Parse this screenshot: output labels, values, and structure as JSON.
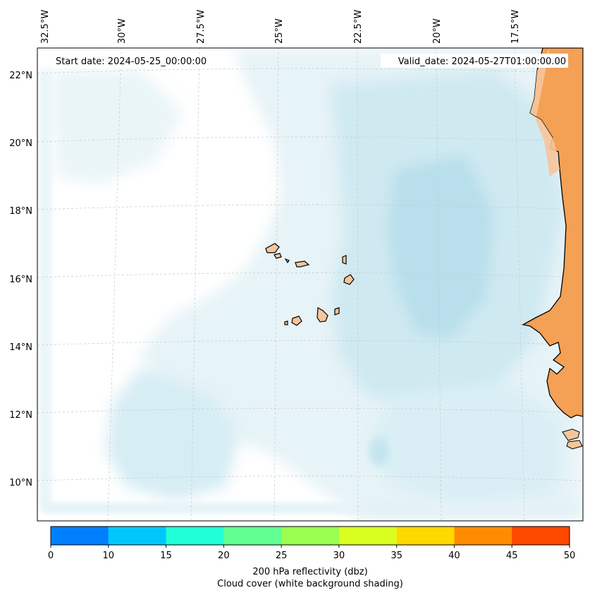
{
  "map": {
    "start_label": "Start date: 2024-05-25_00:00:00",
    "valid_label": "Valid_date: 2024-05-27T01:00:00.00",
    "lon_labels": [
      "32.5°W",
      "30°W",
      "27.5°W",
      "25°W",
      "22.5°W",
      "20°W",
      "17.5°W"
    ],
    "lat_labels": [
      "22°N",
      "20°N",
      "18°N",
      "16°N",
      "14°N",
      "12°N",
      "10°N"
    ],
    "region": "Cape Verde Islands and West African coast",
    "colors": {
      "land": "#f4a055",
      "land_light": "#f6c59a",
      "cloud_light": "#e8f4f8",
      "cloud_mid": "#c6e6ef",
      "cloud_dark": "#a9d8e6",
      "coast": "#000000",
      "grid": "#c8c8c8"
    }
  },
  "colorbar": {
    "label_line1": "200 hPa reflectivity (dbz)",
    "label_line2": "Cloud cover (white background shading)",
    "ticks": [
      "0",
      "10",
      "15",
      "20",
      "25",
      "30",
      "35",
      "40",
      "45",
      "50"
    ],
    "bins": [
      {
        "from": 0,
        "to": 10,
        "color": "#0080ff"
      },
      {
        "from": 10,
        "to": 15,
        "color": "#00c8ff"
      },
      {
        "from": 15,
        "to": 20,
        "color": "#20ffd8"
      },
      {
        "from": 20,
        "to": 25,
        "color": "#60ff90"
      },
      {
        "from": 25,
        "to": 30,
        "color": "#98ff50"
      },
      {
        "from": 30,
        "to": 35,
        "color": "#d8ff20"
      },
      {
        "from": 35,
        "to": 40,
        "color": "#ffd800"
      },
      {
        "from": 40,
        "to": 45,
        "color": "#ff8c00"
      },
      {
        "from": 45,
        "to": 50,
        "color": "#ff4800"
      }
    ]
  }
}
